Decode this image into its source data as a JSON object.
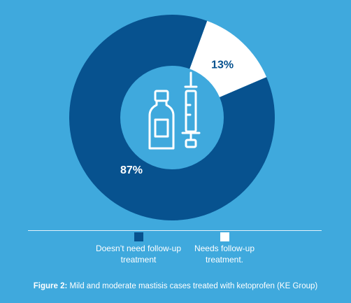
{
  "chart_data": {
    "type": "pie",
    "categories": [
      "Doesn’t need follow-up treatment",
      "Needs follow-up treatment."
    ],
    "values": [
      87,
      13
    ],
    "value_labels": [
      "87%",
      "13%"
    ],
    "colors": [
      "#07528f",
      "#ffffff"
    ],
    "label_colors": [
      "#ffffff",
      "#07528f"
    ],
    "legend_placement": "bottom"
  },
  "center_icons": [
    "vial-icon",
    "syringe-icon"
  ],
  "legend": [
    {
      "line1": "Doesn’t need follow-up",
      "line2": "treatment",
      "color": "#07528f"
    },
    {
      "line1": "Needs follow-up",
      "line2": "treatment.",
      "color": "#ffffff"
    }
  ],
  "caption": {
    "prefix": "Figure 2:",
    "text": " Mild and moderate mastisis cases treated with ketoprofen (KE Group)"
  },
  "colors": {
    "background": "#3fa9dd",
    "center": "#3fa9dd"
  }
}
